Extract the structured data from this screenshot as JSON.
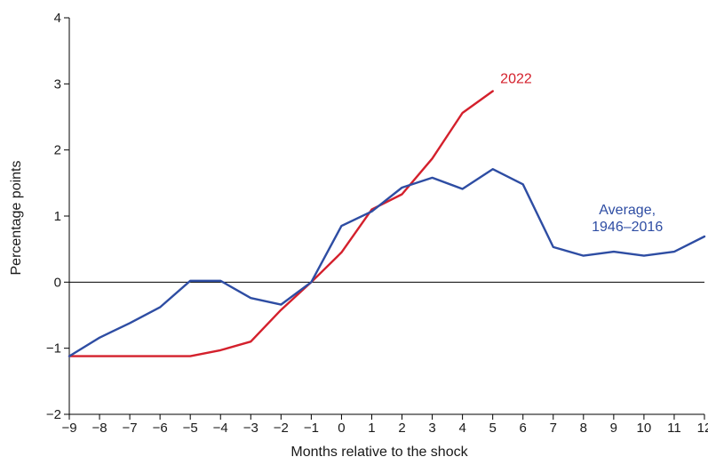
{
  "chart_data": {
    "type": "line",
    "xlabel": "Months relative to the shock",
    "ylabel": "Percentage points",
    "xlim": [
      -9,
      12
    ],
    "ylim": [
      -2,
      4
    ],
    "x_ticks": [
      -9,
      -8,
      -7,
      -6,
      -5,
      -4,
      -3,
      -2,
      -1,
      0,
      1,
      2,
      3,
      4,
      5,
      6,
      7,
      8,
      9,
      10,
      11,
      12
    ],
    "x_tick_labels": [
      "−9",
      "−8",
      "−7",
      "−6",
      "−5",
      "−4",
      "−3",
      "−2",
      "−1",
      "0",
      "1",
      "2",
      "3",
      "4",
      "5",
      "6",
      "7",
      "8",
      "9",
      "10",
      "11",
      "12"
    ],
    "y_ticks": [
      -2,
      -1,
      0,
      1,
      2,
      3,
      4
    ],
    "y_tick_labels": [
      "−2",
      "−1",
      "0",
      "1",
      "2",
      "3",
      "4"
    ],
    "zero_line": true,
    "grid": false,
    "series": [
      {
        "name": "2022",
        "color": "#d4202c",
        "label_lines": [
          "2022"
        ],
        "x": [
          -9,
          -8,
          -7,
          -6,
          -5,
          -4,
          -3,
          -2,
          -1,
          0,
          1,
          2,
          3,
          4,
          5
        ],
        "y": [
          -1.12,
          -1.12,
          -1.12,
          -1.12,
          -1.12,
          -1.03,
          -0.9,
          -0.42,
          0.0,
          0.45,
          1.1,
          1.33,
          1.87,
          2.56,
          2.89
        ]
      },
      {
        "name": "Average, 1946–2016",
        "color": "#2e4da3",
        "label_lines": [
          "Average,",
          "1946–2016"
        ],
        "x": [
          -9,
          -8,
          -7,
          -6,
          -5,
          -4,
          -3,
          -2,
          -1,
          0,
          1,
          2,
          3,
          4,
          5,
          6,
          7,
          8,
          9,
          10,
          11,
          12
        ],
        "y": [
          -1.12,
          -0.84,
          -0.62,
          -0.38,
          0.02,
          0.02,
          -0.24,
          -0.34,
          0.0,
          0.85,
          1.07,
          1.43,
          1.58,
          1.41,
          1.71,
          1.48,
          0.53,
          0.4,
          0.46,
          0.4,
          0.46,
          0.69
        ]
      }
    ]
  }
}
